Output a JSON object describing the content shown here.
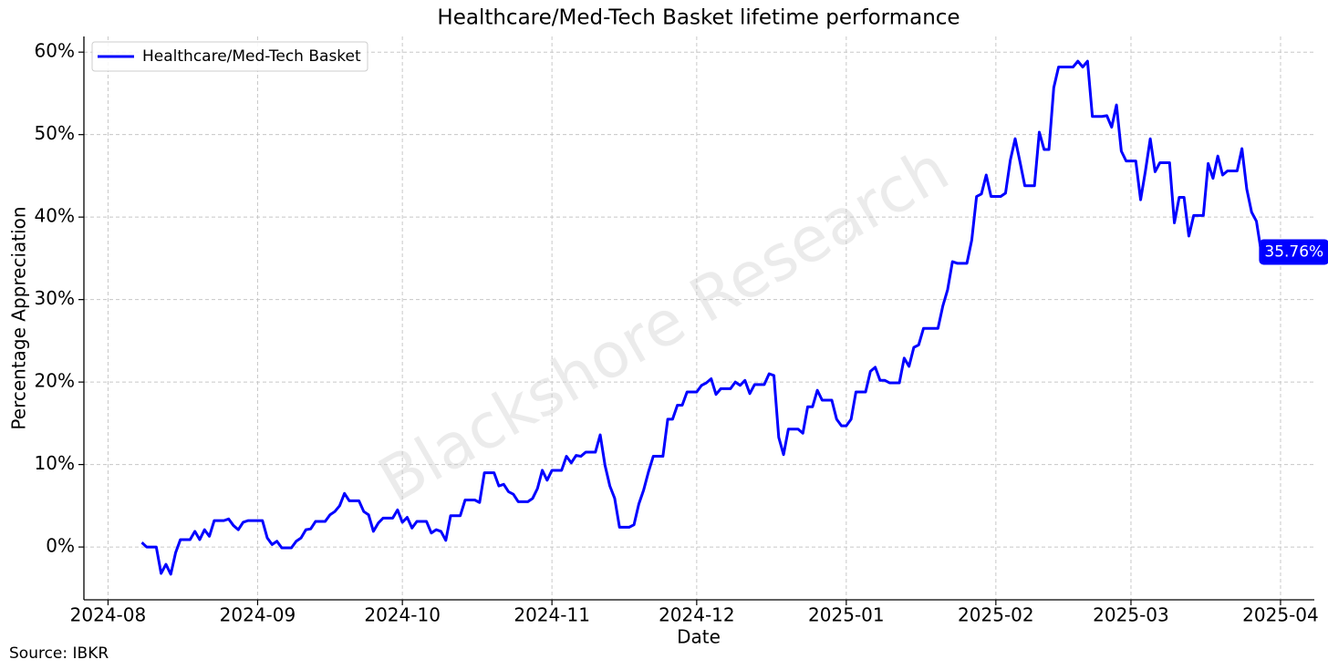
{
  "chart_data": {
    "type": "line",
    "title": "Healthcare/Med-Tech Basket lifetime performance",
    "xlabel": "Date",
    "ylabel": "Percentage Appreciation",
    "source": "Source: IBKR",
    "watermark": "Blackshore Research",
    "legend": "upper left",
    "grid": true,
    "xlim": [
      "2024-07-27",
      "2025-04-08"
    ],
    "ylim": [
      -6.4,
      61.9
    ],
    "xticks": [
      {
        "value": "2024-08-01",
        "label": "2024-08"
      },
      {
        "value": "2024-09-01",
        "label": "2024-09"
      },
      {
        "value": "2024-10-01",
        "label": "2024-10"
      },
      {
        "value": "2024-11-01",
        "label": "2024-11"
      },
      {
        "value": "2024-12-01",
        "label": "2024-12"
      },
      {
        "value": "2025-01-01",
        "label": "2025-01"
      },
      {
        "value": "2025-02-01",
        "label": "2025-02"
      },
      {
        "value": "2025-03-01",
        "label": "2025-03"
      },
      {
        "value": "2025-04-01",
        "label": "2025-04"
      }
    ],
    "yticks": [
      {
        "value": 0,
        "label": "0%"
      },
      {
        "value": 10,
        "label": "10%"
      },
      {
        "value": 20,
        "label": "20%"
      },
      {
        "value": 30,
        "label": "30%"
      },
      {
        "value": 40,
        "label": "40%"
      },
      {
        "value": 50,
        "label": "50%"
      },
      {
        "value": 60,
        "label": "60%"
      }
    ],
    "x": [
      "2024-08-08",
      "2024-08-09",
      "2024-08-11",
      "2024-08-12",
      "2024-08-13",
      "2024-08-14",
      "2024-08-15",
      "2024-08-16",
      "2024-08-18",
      "2024-08-19",
      "2024-08-20",
      "2024-08-21",
      "2024-08-22",
      "2024-08-23",
      "2024-08-25",
      "2024-08-26",
      "2024-08-27",
      "2024-08-28",
      "2024-08-29",
      "2024-08-30",
      "2024-09-02",
      "2024-09-03",
      "2024-09-04",
      "2024-09-05",
      "2024-09-06",
      "2024-09-08",
      "2024-09-09",
      "2024-09-10",
      "2024-09-11",
      "2024-09-12",
      "2024-09-13",
      "2024-09-15",
      "2024-09-16",
      "2024-09-17",
      "2024-09-18",
      "2024-09-19",
      "2024-09-20",
      "2024-09-22",
      "2024-09-23",
      "2024-09-24",
      "2024-09-25",
      "2024-09-26",
      "2024-09-27",
      "2024-09-29",
      "2024-09-30",
      "2024-10-01",
      "2024-10-02",
      "2024-10-03",
      "2024-10-04",
      "2024-10-06",
      "2024-10-07",
      "2024-10-08",
      "2024-10-09",
      "2024-10-10",
      "2024-10-11",
      "2024-10-13",
      "2024-10-14",
      "2024-10-16",
      "2024-10-17",
      "2024-10-18",
      "2024-10-20",
      "2024-10-21",
      "2024-10-22",
      "2024-10-23",
      "2024-10-24",
      "2024-10-25",
      "2024-10-27",
      "2024-10-28",
      "2024-10-29",
      "2024-10-30",
      "2024-10-31",
      "2024-11-01",
      "2024-11-03",
      "2024-11-04",
      "2024-11-05",
      "2024-11-06",
      "2024-11-07",
      "2024-11-08",
      "2024-11-10",
      "2024-11-11",
      "2024-11-12",
      "2024-11-13",
      "2024-11-14",
      "2024-11-15",
      "2024-11-17",
      "2024-11-18",
      "2024-11-19",
      "2024-11-20",
      "2024-11-21",
      "2024-11-22",
      "2024-11-24",
      "2024-11-25",
      "2024-11-26",
      "2024-11-27",
      "2024-11-28",
      "2024-11-29",
      "2024-12-01",
      "2024-12-02",
      "2024-12-03",
      "2024-12-04",
      "2024-12-05",
      "2024-12-06",
      "2024-12-08",
      "2024-12-09",
      "2024-12-10",
      "2024-12-11",
      "2024-12-12",
      "2024-12-13",
      "2024-12-15",
      "2024-12-16",
      "2024-12-17",
      "2024-12-18",
      "2024-12-19",
      "2024-12-20",
      "2024-12-22",
      "2024-12-23",
      "2024-12-24",
      "2024-12-25",
      "2024-12-26",
      "2024-12-27",
      "2024-12-29",
      "2024-12-30",
      "2024-12-31",
      "2025-01-01",
      "2025-01-02",
      "2025-01-03",
      "2025-01-05",
      "2025-01-06",
      "2025-01-07",
      "2025-01-08",
      "2025-01-09",
      "2025-01-10",
      "2025-01-12",
      "2025-01-13",
      "2025-01-14",
      "2025-01-15",
      "2025-01-16",
      "2025-01-17",
      "2025-01-20",
      "2025-01-21",
      "2025-01-22",
      "2025-01-23",
      "2025-01-24",
      "2025-01-26",
      "2025-01-27",
      "2025-01-28",
      "2025-01-29",
      "2025-01-30",
      "2025-01-31",
      "2025-02-02",
      "2025-02-03",
      "2025-02-04",
      "2025-02-05",
      "2025-02-06",
      "2025-02-07",
      "2025-02-09",
      "2025-02-10",
      "2025-02-11",
      "2025-02-12",
      "2025-02-13",
      "2025-02-14",
      "2025-02-17",
      "2025-02-18",
      "2025-02-19",
      "2025-02-20",
      "2025-02-21",
      "2025-02-23",
      "2025-02-24",
      "2025-02-25",
      "2025-02-26",
      "2025-02-27",
      "2025-02-28",
      "2025-03-02",
      "2025-03-03",
      "2025-03-04",
      "2025-03-05",
      "2025-03-06",
      "2025-03-07",
      "2025-03-09",
      "2025-03-10",
      "2025-03-11",
      "2025-03-12",
      "2025-03-13",
      "2025-03-14",
      "2025-03-16",
      "2025-03-17",
      "2025-03-18",
      "2025-03-19",
      "2025-03-20",
      "2025-03-21",
      "2025-03-23",
      "2025-03-24",
      "2025-03-25",
      "2025-03-26",
      "2025-03-27",
      "2025-03-28"
    ],
    "series": [
      {
        "name": "Healthcare/Med-Tech Basket",
        "color": "#0000ff",
        "values": [
          0.55,
          0,
          0,
          -3.2,
          -2.1,
          -3.3,
          -0.7,
          0.9,
          0.9,
          1.9,
          0.9,
          2.1,
          1.3,
          3.2,
          3.2,
          3.4,
          2.6,
          2.1,
          3.0,
          3.2,
          3.2,
          1.1,
          0.3,
          0.7,
          -0.1,
          -0.1,
          0.7,
          1.1,
          2.1,
          2.2,
          3.1,
          3.1,
          3.9,
          4.3,
          5.0,
          6.5,
          5.6,
          5.6,
          4.3,
          3.9,
          1.9,
          2.9,
          3.5,
          3.5,
          4.5,
          3.0,
          3.6,
          2.3,
          3.1,
          3.1,
          1.7,
          2.1,
          1.9,
          0.8,
          3.8,
          3.8,
          5.7,
          5.7,
          5.4,
          9.0,
          9.0,
          7.4,
          7.6,
          6.7,
          6.4,
          5.5,
          5.5,
          5.9,
          7.1,
          9.3,
          8.1,
          9.3,
          9.3,
          11.0,
          10.2,
          11.1,
          11.0,
          11.5,
          11.5,
          13.6,
          9.9,
          7.4,
          5.9,
          2.4,
          2.4,
          2.7,
          5.2,
          6.9,
          9.1,
          11.0,
          11.0,
          15.5,
          15.5,
          17.2,
          17.2,
          18.8,
          18.8,
          19.6,
          19.9,
          20.4,
          18.5,
          19.2,
          19.2,
          20.0,
          19.6,
          20.2,
          18.6,
          19.7,
          19.7,
          21.0,
          20.8,
          13.3,
          11.2,
          14.3,
          14.3,
          13.8,
          17.0,
          17.0,
          19.0,
          17.8,
          17.8,
          15.5,
          14.7,
          14.7,
          15.5,
          18.8,
          18.8,
          21.3,
          21.8,
          20.2,
          20.2,
          19.9,
          19.9,
          22.9,
          21.9,
          24.2,
          24.5,
          26.5,
          26.5,
          29.2,
          31.2,
          34.6,
          34.4,
          34.4,
          37.2,
          42.5,
          42.8,
          45.1,
          42.5,
          42.5,
          42.9,
          46.9,
          49.5,
          46.7,
          43.8,
          43.8,
          50.3,
          48.2,
          48.2,
          55.7,
          58.2,
          58.2,
          58.9,
          58.2,
          58.9,
          52.2,
          52.2,
          52.3,
          50.9,
          53.6,
          48.0,
          46.8,
          46.8,
          42.1,
          45.6,
          49.5,
          45.5,
          46.6,
          46.6,
          39.3,
          42.4,
          42.4,
          37.7,
          40.2,
          40.2,
          46.5,
          44.7,
          47.4,
          45.1,
          45.6,
          45.6,
          48.3,
          43.4,
          40.6,
          39.5,
          35.76
        ],
        "value_labels": [
          null,
          null,
          null,
          null,
          null,
          null,
          null,
          null,
          null,
          null,
          null,
          null,
          null,
          null,
          null,
          null,
          null,
          null,
          null,
          null,
          null,
          null,
          null,
          null,
          null,
          null,
          null,
          null,
          null,
          null,
          null,
          null,
          null,
          null,
          null,
          null,
          null,
          null,
          null,
          null,
          null,
          null,
          null,
          null,
          null,
          null,
          null,
          null,
          null,
          null,
          null,
          null,
          null,
          null,
          null,
          null,
          null,
          null,
          null,
          null,
          null,
          null,
          null,
          null,
          null,
          null,
          null,
          null,
          null,
          null,
          null,
          null,
          null,
          null,
          null,
          null,
          null,
          null,
          null,
          null,
          null,
          null,
          null,
          null,
          null,
          null,
          null,
          null,
          null,
          null,
          null,
          null,
          null,
          null,
          null,
          null,
          null,
          null,
          null,
          null,
          null,
          null,
          null,
          null,
          null,
          null,
          null,
          null,
          null,
          null,
          null,
          null,
          null,
          null,
          null,
          null,
          null,
          null,
          null,
          null,
          null,
          null,
          null,
          null,
          null,
          null,
          null,
          null,
          null,
          null,
          null,
          null,
          null,
          null,
          null,
          null,
          null,
          null,
          null,
          null,
          null,
          null,
          null,
          null,
          null,
          null,
          null,
          null,
          null,
          null,
          null,
          null,
          null,
          null,
          null,
          null,
          null,
          null,
          null,
          null,
          null,
          null,
          null,
          null,
          null,
          null,
          null,
          null,
          null,
          null,
          null,
          null,
          null,
          null,
          null,
          null,
          null,
          null,
          null,
          null,
          null,
          null,
          null,
          null,
          null,
          null,
          null,
          null,
          null,
          null,
          null,
          null,
          null,
          null,
          null,
          "35.76%"
        ]
      }
    ]
  }
}
